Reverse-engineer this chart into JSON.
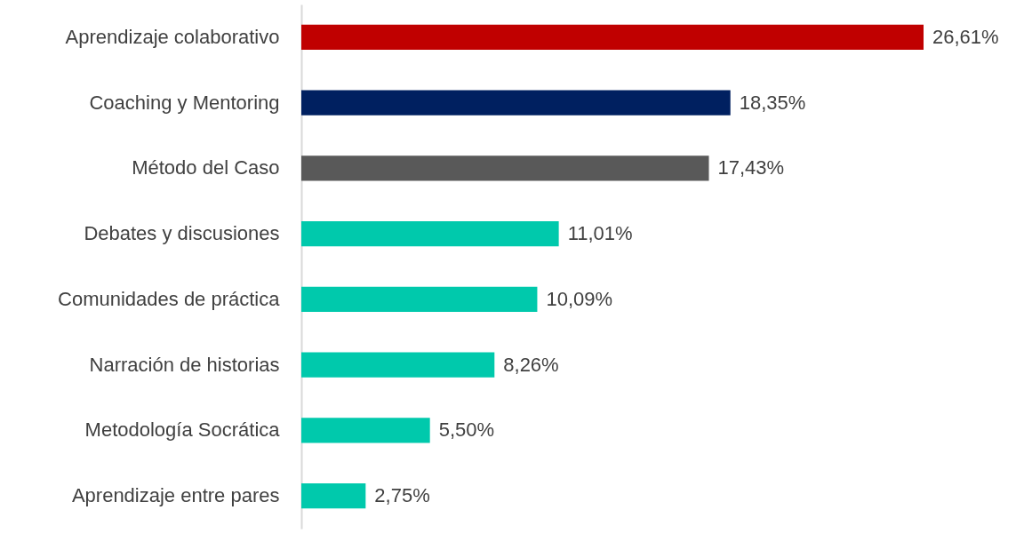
{
  "chart_data": {
    "type": "bar",
    "orientation": "horizontal",
    "categories": [
      "Aprendizaje colaborativo",
      "Coaching y Mentoring",
      "Método del Caso",
      "Debates y discusiones",
      "Comunidades de práctica",
      "Narración de historias",
      "Metodología Socrática",
      "Aprendizaje entre pares"
    ],
    "values": [
      26.61,
      18.35,
      17.43,
      11.01,
      10.09,
      8.26,
      5.5,
      2.75
    ],
    "value_labels": [
      "26,61%",
      "18,35%",
      "17,43%",
      "11,01%",
      "10,09%",
      "8,26%",
      "5,50%",
      "2,75%"
    ],
    "colors": [
      "#c00000",
      "#002060",
      "#595959",
      "#00c9ac",
      "#00c9ac",
      "#00c9ac",
      "#00c9ac",
      "#00c9ac"
    ],
    "tick_labels": "y",
    "grid": false
  }
}
